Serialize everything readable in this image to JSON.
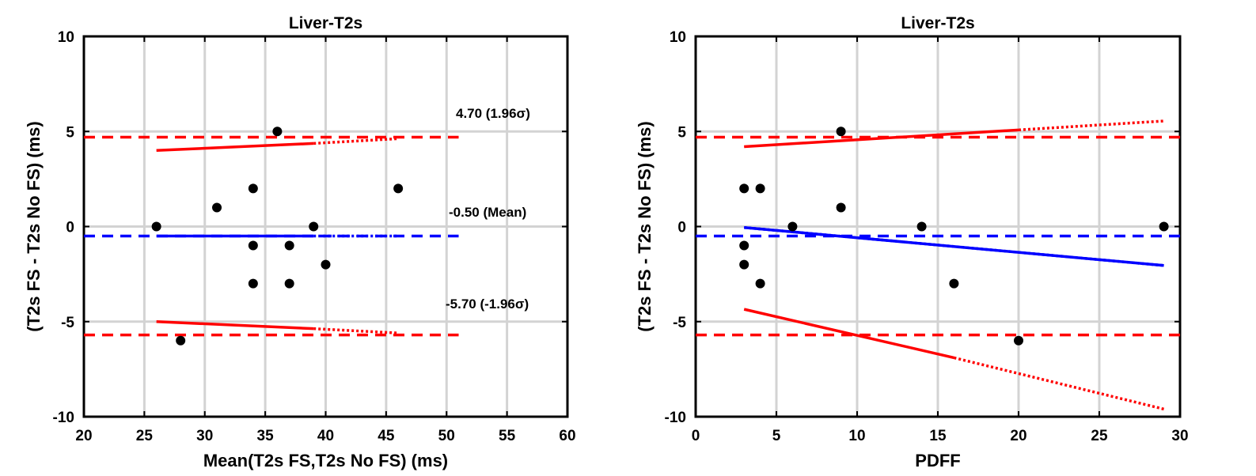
{
  "chart_data": [
    {
      "type": "scatter",
      "title": "Liver-T2s",
      "xlabel": "Mean(T2s FS,T2s No FS) (ms)",
      "ylabel": "(T2s FS - T2s No FS) (ms)",
      "xlim": [
        20,
        60
      ],
      "ylim": [
        -10,
        10
      ],
      "xticks": [
        20,
        25,
        30,
        35,
        40,
        45,
        50,
        55,
        60
      ],
      "yticks": [
        -10,
        -5,
        0,
        5,
        10
      ],
      "grid": true,
      "points": [
        {
          "x": 26,
          "y": 0
        },
        {
          "x": 28,
          "y": -6
        },
        {
          "x": 31,
          "y": 1
        },
        {
          "x": 34,
          "y": 2
        },
        {
          "x": 34,
          "y": -1
        },
        {
          "x": 34,
          "y": -3
        },
        {
          "x": 36,
          "y": 5
        },
        {
          "x": 37,
          "y": -1
        },
        {
          "x": 37,
          "y": -3
        },
        {
          "x": 39,
          "y": 0
        },
        {
          "x": 40,
          "y": -2
        },
        {
          "x": 46,
          "y": 2
        }
      ],
      "reference_lines": [
        {
          "value": 4.7,
          "color": "#ff0000",
          "style": "dashed",
          "label": "4.70 (1.96σ)",
          "x_range": [
            20,
            51
          ]
        },
        {
          "value": -0.5,
          "color": "#0000ff",
          "style": "dashed",
          "label": "-0.50 (Mean)",
          "x_range": [
            20,
            51
          ]
        },
        {
          "value": -5.7,
          "color": "#ff0000",
          "style": "dashed",
          "label": "-5.70 (-1.96σ)",
          "x_range": [
            20,
            51
          ]
        }
      ],
      "trend_lines": [
        {
          "color": "#ff0000",
          "solid": [
            [
              26,
              4.0
            ],
            [
              39,
              4.37
            ]
          ],
          "dotted": [
            [
              39,
              4.37
            ],
            [
              46,
              4.62
            ]
          ]
        },
        {
          "color": "#0000ff",
          "solid": [
            [
              26,
              -0.5
            ],
            [
              39,
              -0.5
            ]
          ],
          "dotted": [
            [
              39,
              -0.5
            ],
            [
              46,
              -0.5
            ]
          ]
        },
        {
          "color": "#ff0000",
          "solid": [
            [
              26,
              -5.0
            ],
            [
              39,
              -5.37
            ]
          ],
          "dotted": [
            [
              39,
              -5.37
            ],
            [
              46,
              -5.6
            ]
          ]
        }
      ]
    },
    {
      "type": "scatter",
      "title": "Liver-T2s",
      "xlabel": "PDFF",
      "ylabel": "(T2s FS - T2s No FS) (ms)",
      "xlim": [
        0,
        30
      ],
      "ylim": [
        -10,
        10
      ],
      "xticks": [
        0,
        5,
        10,
        15,
        20,
        25,
        30
      ],
      "yticks": [
        -10,
        -5,
        0,
        5,
        10
      ],
      "grid": true,
      "points": [
        {
          "x": 3,
          "y": 2
        },
        {
          "x": 3,
          "y": -1
        },
        {
          "x": 3,
          "y": -2
        },
        {
          "x": 4,
          "y": 2
        },
        {
          "x": 4,
          "y": -3
        },
        {
          "x": 6,
          "y": 0
        },
        {
          "x": 9,
          "y": 5
        },
        {
          "x": 9,
          "y": 1
        },
        {
          "x": 14,
          "y": 0
        },
        {
          "x": 16,
          "y": -3
        },
        {
          "x": 20,
          "y": -6
        },
        {
          "x": 29,
          "y": 0
        }
      ],
      "reference_lines": [
        {
          "value": 4.7,
          "color": "#ff0000",
          "style": "dashed",
          "label": "",
          "x_range": [
            0,
            30
          ]
        },
        {
          "value": -0.5,
          "color": "#0000ff",
          "style": "dashed",
          "label": "",
          "x_range": [
            0,
            30
          ]
        },
        {
          "value": -5.7,
          "color": "#ff0000",
          "style": "dashed",
          "label": "",
          "x_range": [
            0,
            30
          ]
        }
      ],
      "trend_lines": [
        {
          "color": "#ff0000",
          "solid": [
            [
              3,
              4.2
            ],
            [
              20,
              5.08
            ]
          ],
          "dotted": [
            [
              20,
              5.08
            ],
            [
              29,
              5.55
            ]
          ]
        },
        {
          "color": "#0000ff",
          "solid": [
            [
              3,
              -0.05
            ],
            [
              29,
              -2.05
            ]
          ],
          "dotted": [
            [
              3,
              -0.05
            ],
            [
              29,
              -2.05
            ]
          ]
        },
        {
          "color": "#ff0000",
          "solid": [
            [
              3,
              -4.35
            ],
            [
              16,
              -6.9
            ]
          ],
          "dotted": [
            [
              16,
              -6.9
            ],
            [
              29,
              -9.6
            ]
          ]
        }
      ]
    }
  ]
}
